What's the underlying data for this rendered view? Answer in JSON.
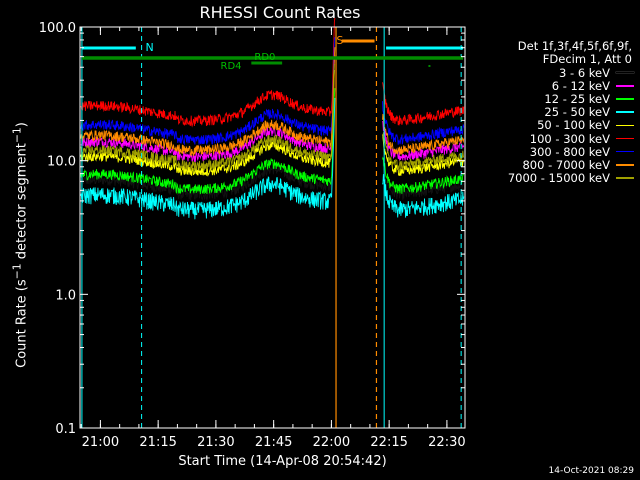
{
  "chart_data": {
    "type": "line",
    "title": "RHESSI Count Rates",
    "xlabel": "Start Time (14-Apr-08 20:54:42)",
    "ylabel": "Count Rate (s⁻¹ detector segment⁻¹)",
    "yscale": "log",
    "ylim": [
      0.1,
      100.0
    ],
    "xlim_min": [
      0,
      100
    ],
    "xticks": [
      {
        "label": "21:00",
        "min": 5.3
      },
      {
        "label": "21:15",
        "min": 20.3
      },
      {
        "label": "21:30",
        "min": 35.3
      },
      {
        "label": "21:45",
        "min": 50.3
      },
      {
        "label": "22:00",
        "min": 65.3
      },
      {
        "label": "22:15",
        "min": 80.3
      },
      {
        "label": "22:30",
        "min": 95.3
      }
    ],
    "yticks": [
      {
        "label": "100.0",
        "value": 100
      },
      {
        "label": "10.0",
        "value": 10
      },
      {
        "label": "1.0",
        "value": 1
      },
      {
        "label": "0.1",
        "value": 0.1
      }
    ],
    "legend_header": [
      "Det 1f,3f,4f,5f,6f,9f,",
      "FDecim 1, Att 0"
    ],
    "legend_position": "right",
    "series": [
      {
        "name": "3 - 6 keV",
        "color": "#000000",
        "base": 7.5
      },
      {
        "name": "6 - 12 keV",
        "color": "#ff00ff",
        "base": 14.5
      },
      {
        "name": "12 - 25 keV",
        "color": "#00ff00",
        "base": 8.3
      },
      {
        "name": "25 - 50 keV",
        "color": "#00ffff",
        "base": 5.8
      },
      {
        "name": "50 - 100 keV",
        "color": "#ffff00",
        "base": 11.3
      },
      {
        "name": "100 - 300 keV",
        "color": "#ff0000",
        "base": 27.0
      },
      {
        "name": "300 - 800 keV",
        "color": "#0000ff",
        "base": 19.5
      },
      {
        "name": "800 - 7000 keV",
        "color": "#ff8c00",
        "base": 16.2
      },
      {
        "name": "7000 - 15000 keV",
        "color": "#a0a000",
        "base": 12.5
      }
    ],
    "flare_spike": {
      "start_min": 64.6,
      "end_min": 66.3
    },
    "data_gap": {
      "start_min": 66.5,
      "end_min": 78.5
    },
    "bump_center_min": 49.5,
    "annotations": {
      "night_label": "N",
      "saa_label": "S",
      "rd0_label": "RD0",
      "rd4_label": "RD4"
    },
    "markers": {
      "night_cyan_solid_min": [
        0.5,
        79.0
      ],
      "night_cyan_dashed_min": [
        16.0,
        99.0
      ],
      "saa_orange_solid_min": 66.5,
      "saa_orange_dashed_min": 77.0
    },
    "grid": false
  },
  "footer": {
    "timestamp": "14-Oct-2021 08:29"
  }
}
